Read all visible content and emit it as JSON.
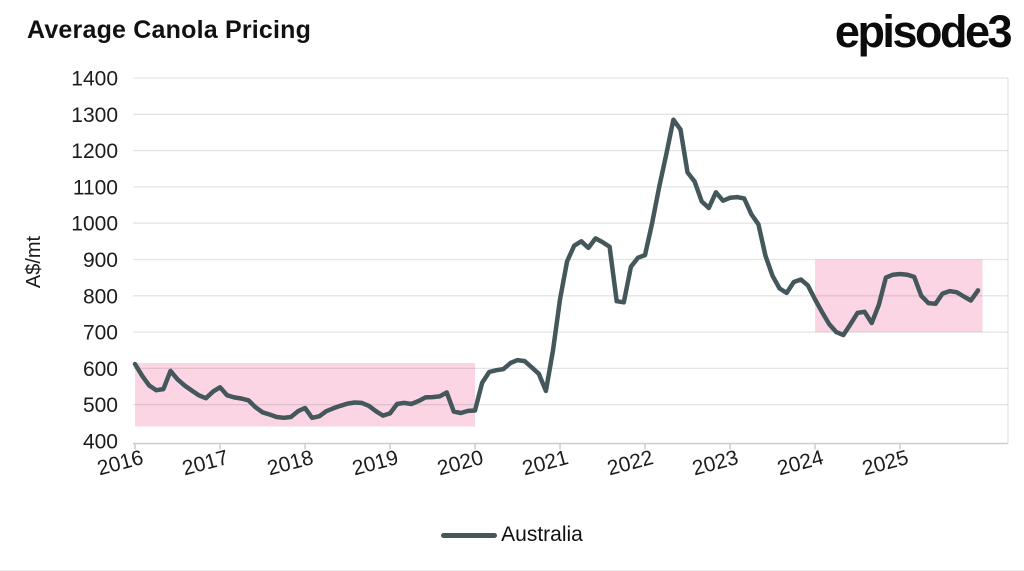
{
  "brand": {
    "logo_text": "episode3"
  },
  "chart_data": {
    "type": "line",
    "title": "Average Canola Pricing",
    "xlabel": "",
    "ylabel": "A$/mt",
    "ylim": [
      400,
      1400
    ],
    "yticks": [
      400,
      500,
      600,
      700,
      800,
      900,
      1000,
      1100,
      1200,
      1300,
      1400
    ],
    "xticks": [
      2016,
      2017,
      2018,
      2019,
      2020,
      2021,
      2022,
      2023,
      2024,
      2025
    ],
    "x_start_year": 2016,
    "points_per_year": 12,
    "grid": "horizontal",
    "legend_position": "bottom",
    "band_color": "#fcd5e4",
    "axis_color": "#cdcdcd",
    "grid_color": "rgba(0,0,0,0.10)",
    "highlight_bands": [
      {
        "x_from": 2016.0,
        "x_to": 2020.0,
        "y_from": 440,
        "y_to": 615
      },
      {
        "x_from": 2024.0,
        "x_to": 2025.97,
        "y_from": 700,
        "y_to": 900
      }
    ],
    "series": [
      {
        "name": "Australia",
        "color": "#44575a",
        "values": [
          612,
          580,
          553,
          540,
          543,
          593,
          570,
          553,
          539,
          526,
          518,
          536,
          548,
          526,
          520,
          517,
          512,
          493,
          479,
          473,
          466,
          464,
          466,
          482,
          491,
          464,
          468,
          482,
          490,
          497,
          503,
          506,
          505,
          497,
          482,
          470,
          476,
          502,
          505,
          502,
          510,
          520,
          521,
          523,
          534,
          481,
          477,
          483,
          484,
          560,
          590,
          595,
          598,
          615,
          623,
          620,
          603,
          585,
          538,
          650,
          790,
          895,
          938,
          950,
          932,
          958,
          948,
          935,
          785,
          782,
          880,
          905,
          912,
          1000,
          1100,
          1190,
          1285,
          1258,
          1140,
          1115,
          1060,
          1042,
          1085,
          1062,
          1070,
          1072,
          1068,
          1025,
          997,
          910,
          855,
          820,
          808,
          838,
          845,
          828,
          790,
          755,
          722,
          700,
          692,
          722,
          753,
          756,
          725,
          775,
          850,
          858,
          860,
          858,
          852,
          800,
          780,
          778,
          806,
          813,
          810,
          798,
          787,
          815
        ]
      }
    ]
  }
}
